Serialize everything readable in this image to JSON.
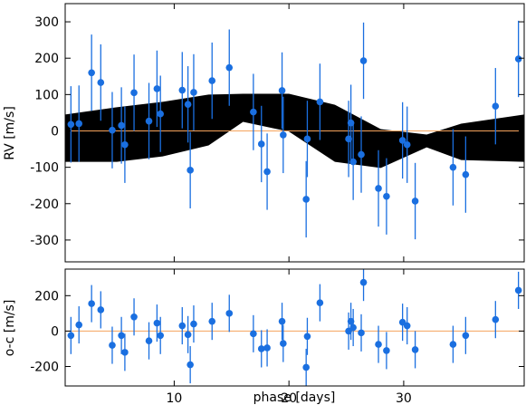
{
  "chart_data": [
    {
      "type": "scatter",
      "panel": "top",
      "ylabel": "RV [m/s]",
      "xlabel": "",
      "xlim": [
        0.5,
        40.5
      ],
      "ylim": [
        -360,
        350
      ],
      "xticks": [
        10,
        20,
        30
      ],
      "yticks": [
        -300,
        -200,
        -100,
        0,
        100,
        200,
        300
      ],
      "grid": false,
      "colors": {
        "points": "#1a6fe0",
        "band": "#000000",
        "zero_line": "#f5a35c"
      },
      "model_envelope": {
        "phase": [
          0.5,
          5,
          9,
          13,
          16,
          20,
          24,
          28,
          32,
          35,
          40.5
        ],
        "upper": [
          45,
          65,
          80,
          100,
          102,
          102,
          72,
          5,
          -10,
          20,
          45
        ],
        "lower": [
          -85,
          -85,
          -70,
          -40,
          25,
          -2,
          -85,
          -102,
          -45,
          -80,
          -85
        ]
      },
      "series": [
        {
          "points": [
            {
              "x": 1.0,
              "y": 18,
              "err": 105
            },
            {
              "x": 1.7,
              "y": 20,
              "err": 105
            },
            {
              "x": 2.8,
              "y": 160,
              "err": 105
            },
            {
              "x": 3.6,
              "y": 133,
              "err": 105
            },
            {
              "x": 4.6,
              "y": 2,
              "err": 105
            },
            {
              "x": 5.4,
              "y": 15,
              "err": 105
            },
            {
              "x": 5.7,
              "y": -38,
              "err": 105
            },
            {
              "x": 6.5,
              "y": 105,
              "err": 105
            },
            {
              "x": 7.8,
              "y": 27,
              "err": 105
            },
            {
              "x": 8.5,
              "y": 116,
              "err": 105
            },
            {
              "x": 8.8,
              "y": 47,
              "err": 105
            },
            {
              "x": 10.7,
              "y": 112,
              "err": 105
            },
            {
              "x": 11.2,
              "y": 73,
              "err": 105
            },
            {
              "x": 11.4,
              "y": -108,
              "err": 105
            },
            {
              "x": 11.7,
              "y": 106,
              "err": 105
            },
            {
              "x": 13.3,
              "y": 138,
              "err": 105
            },
            {
              "x": 14.8,
              "y": 174,
              "err": 105
            },
            {
              "x": 16.9,
              "y": 52,
              "err": 105
            },
            {
              "x": 17.6,
              "y": -36,
              "err": 105
            },
            {
              "x": 18.1,
              "y": -112,
              "err": 105
            },
            {
              "x": 19.4,
              "y": 111,
              "err": 105
            },
            {
              "x": 19.5,
              "y": -11,
              "err": 105
            },
            {
              "x": 21.5,
              "y": -188,
              "err": 105
            },
            {
              "x": 21.6,
              "y": -22,
              "err": 105
            },
            {
              "x": 22.7,
              "y": 80,
              "err": 105
            },
            {
              "x": 25.2,
              "y": -22,
              "err": 105
            },
            {
              "x": 25.4,
              "y": 22,
              "err": 105
            },
            {
              "x": 25.6,
              "y": -85,
              "err": 105
            },
            {
              "x": 26.3,
              "y": -65,
              "err": 105
            },
            {
              "x": 26.5,
              "y": 193,
              "err": 105
            },
            {
              "x": 27.8,
              "y": -158,
              "err": 105
            },
            {
              "x": 28.5,
              "y": -180,
              "err": 105
            },
            {
              "x": 29.9,
              "y": -26,
              "err": 105
            },
            {
              "x": 30.3,
              "y": -38,
              "err": 105
            },
            {
              "x": 31.0,
              "y": -193,
              "err": 105
            },
            {
              "x": 34.3,
              "y": -100,
              "err": 105
            },
            {
              "x": 35.4,
              "y": -120,
              "err": 105
            },
            {
              "x": 38.0,
              "y": 68,
              "err": 105
            },
            {
              "x": 40.0,
              "y": 198,
              "err": 105
            }
          ]
        }
      ]
    },
    {
      "type": "scatter",
      "panel": "bottom",
      "ylabel": "o-c [m/s]",
      "xlabel": "phase [days]",
      "xlim": [
        0.5,
        40.5
      ],
      "ylim": [
        -310,
        350
      ],
      "xticks": [
        10,
        20,
        30
      ],
      "yticks": [
        -200,
        0,
        200
      ],
      "grid": false,
      "colors": {
        "points": "#1a6fe0",
        "zero_line": "#f5a35c"
      },
      "series": [
        {
          "points": [
            {
              "x": 1.0,
              "y": -25,
              "err": 105
            },
            {
              "x": 1.7,
              "y": 35,
              "err": 105
            },
            {
              "x": 2.8,
              "y": 155,
              "err": 105
            },
            {
              "x": 3.6,
              "y": 120,
              "err": 105
            },
            {
              "x": 4.6,
              "y": -80,
              "err": 105
            },
            {
              "x": 5.4,
              "y": -25,
              "err": 105
            },
            {
              "x": 5.7,
              "y": -120,
              "err": 105
            },
            {
              "x": 6.5,
              "y": 80,
              "err": 105
            },
            {
              "x": 7.8,
              "y": -55,
              "err": 105
            },
            {
              "x": 8.5,
              "y": 45,
              "err": 105
            },
            {
              "x": 8.8,
              "y": -25,
              "err": 105
            },
            {
              "x": 10.7,
              "y": 30,
              "err": 105
            },
            {
              "x": 11.2,
              "y": -20,
              "err": 105
            },
            {
              "x": 11.4,
              "y": -190,
              "err": 105
            },
            {
              "x": 11.7,
              "y": 40,
              "err": 105
            },
            {
              "x": 13.3,
              "y": 55,
              "err": 105
            },
            {
              "x": 14.8,
              "y": 100,
              "err": 105
            },
            {
              "x": 16.9,
              "y": -15,
              "err": 105
            },
            {
              "x": 17.6,
              "y": -100,
              "err": 105
            },
            {
              "x": 18.1,
              "y": -95,
              "err": 105
            },
            {
              "x": 19.4,
              "y": 55,
              "err": 105
            },
            {
              "x": 19.5,
              "y": -70,
              "err": 105
            },
            {
              "x": 21.5,
              "y": -205,
              "err": 105
            },
            {
              "x": 21.6,
              "y": -30,
              "err": 105
            },
            {
              "x": 22.7,
              "y": 160,
              "err": 105
            },
            {
              "x": 25.2,
              "y": 0,
              "err": 105
            },
            {
              "x": 25.4,
              "y": 55,
              "err": 105
            },
            {
              "x": 25.6,
              "y": 20,
              "err": 105
            },
            {
              "x": 26.3,
              "y": -10,
              "err": 105
            },
            {
              "x": 26.5,
              "y": 275,
              "err": 105
            },
            {
              "x": 27.8,
              "y": -75,
              "err": 105
            },
            {
              "x": 28.5,
              "y": -110,
              "err": 105
            },
            {
              "x": 29.9,
              "y": 50,
              "err": 105
            },
            {
              "x": 30.3,
              "y": 30,
              "err": 105
            },
            {
              "x": 31.0,
              "y": -105,
              "err": 105
            },
            {
              "x": 34.3,
              "y": -75,
              "err": 105
            },
            {
              "x": 35.4,
              "y": -25,
              "err": 105
            },
            {
              "x": 38.0,
              "y": 65,
              "err": 105
            },
            {
              "x": 40.0,
              "y": 230,
              "err": 105
            }
          ]
        }
      ]
    }
  ]
}
